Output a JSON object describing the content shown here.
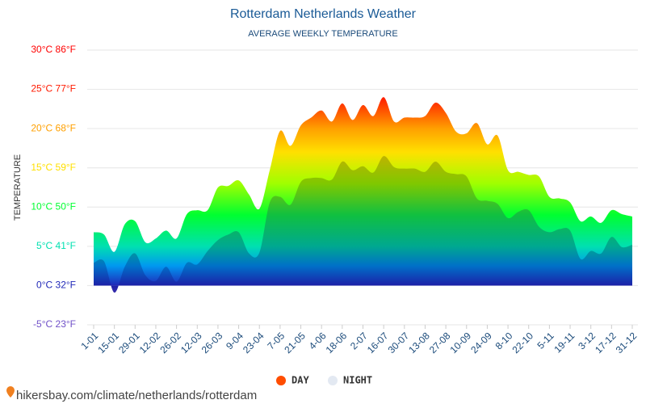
{
  "chart_data": {
    "type": "area",
    "title": "Rotterdam Netherlands Weather",
    "subtitle": "AVERAGE WEEKLY TEMPERATURE",
    "y_label": "TEMPERATURE",
    "source": "hikersbay.com/climate/netherlands/rotterdam",
    "categories": [
      "1-01",
      null,
      "15-01",
      null,
      "29-01",
      null,
      "12-02",
      null,
      "26-02",
      null,
      "12-03",
      null,
      "26-03",
      null,
      "9-04",
      null,
      "23-04",
      null,
      "7-05",
      null,
      "21-05",
      null,
      "4-06",
      null,
      "18-06",
      null,
      "2-07",
      null,
      "16-07",
      null,
      "30-07",
      null,
      "13-08",
      null,
      "27-08",
      null,
      "10-09",
      null,
      "24-09",
      null,
      "8-10",
      null,
      "22-10",
      null,
      "5-11",
      null,
      "19-11",
      null,
      "3-12",
      null,
      "17-12",
      null,
      "31-12"
    ],
    "series": [
      {
        "name": "DAY",
        "color": "#ff4d00",
        "values": [
          6.8,
          6.5,
          4.3,
          7.8,
          8.2,
          5.5,
          6.0,
          7.0,
          6.0,
          9.1,
          9.6,
          9.6,
          12.5,
          12.7,
          13.4,
          11.6,
          9.8,
          14.7,
          19.7,
          17.8,
          20.4,
          21.4,
          22.3,
          20.9,
          23.2,
          21.1,
          23.0,
          21.6,
          24.0,
          20.9,
          21.4,
          21.4,
          21.6,
          23.3,
          22.0,
          19.6,
          19.4,
          20.7,
          18.0,
          19.1,
          14.7,
          14.5,
          14.1,
          13.9,
          11.3,
          11.1,
          10.6,
          8.2,
          8.8,
          8.0,
          9.6,
          9.1,
          8.8
        ]
      },
      {
        "name": "NIGHT",
        "color": "#e3e9f2",
        "values": [
          2.9,
          3.1,
          -0.9,
          2.4,
          4.1,
          1.3,
          0.6,
          2.4,
          0.5,
          2.9,
          2.7,
          4.4,
          5.8,
          6.5,
          6.8,
          4.1,
          4.2,
          10.6,
          11.3,
          10.3,
          13.2,
          13.7,
          13.7,
          13.5,
          15.8,
          14.7,
          15.2,
          14.4,
          16.5,
          15.1,
          14.9,
          14.9,
          14.5,
          15.8,
          14.5,
          14.2,
          13.9,
          11.1,
          10.8,
          10.4,
          8.6,
          9.4,
          9.6,
          7.5,
          6.8,
          7.2,
          7.0,
          3.4,
          4.4,
          4.1,
          6.2,
          4.9,
          5.2
        ]
      }
    ],
    "ylim": [
      -5,
      30
    ],
    "yticks": [
      {
        "value": -5,
        "label": "-5°C 23°F"
      },
      {
        "value": 0,
        "label": "0°C 32°F"
      },
      {
        "value": 5,
        "label": "5°C 41°F"
      },
      {
        "value": 10,
        "label": "10°C 50°F"
      },
      {
        "value": 15,
        "label": "15°C 59°F"
      },
      {
        "value": 20,
        "label": "20°C 68°F"
      },
      {
        "value": 25,
        "label": "25°C 77°F"
      },
      {
        "value": 30,
        "label": "30°C 86°F"
      }
    ],
    "grid": true
  }
}
